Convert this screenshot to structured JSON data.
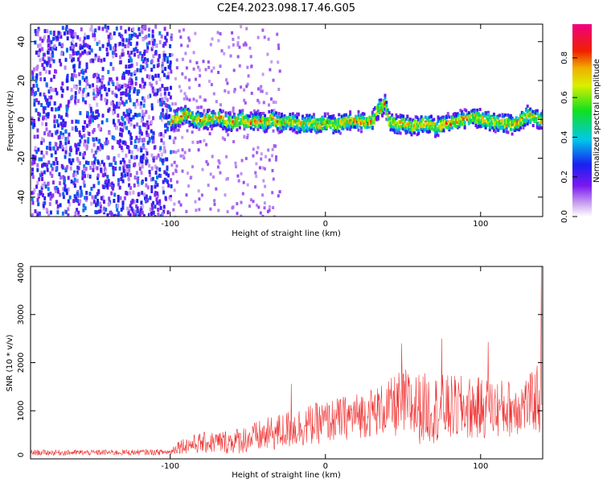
{
  "figure_title": "C2E4.2023.098.17.46.G05",
  "chart_data": [
    {
      "type": "heatmap",
      "title": "C2E4.2023.098.17.46.G05",
      "xlabel": "Height of straight line (km)",
      "ylabel": "Frequency (Hz)",
      "xlim": [
        -190,
        140
      ],
      "ylim": [
        -50,
        49
      ],
      "x_ticks": [
        -100,
        0,
        100
      ],
      "y_ticks": [
        -40,
        -20,
        0,
        20,
        40
      ],
      "colorbar": {
        "label": "Normalized spectral amplitude",
        "range": [
          0,
          0.97
        ],
        "ticks": [
          "0.0",
          "0.2",
          "0.4",
          "0.6",
          "0.8"
        ],
        "colormap": "rainbow (white → violet → blue → cyan → green → yellow → red → magenta)"
      },
      "noise_region": {
        "x_range": [
          -190,
          -100
        ],
        "y_range": [
          -50,
          49
        ],
        "amplitude": [
          0.05,
          0.35
        ]
      },
      "signal_ridge": {
        "x": [
          -100,
          -95,
          -90,
          -85,
          -80,
          -75,
          -70,
          -65,
          -60,
          -55,
          -50,
          -45,
          -40,
          -35,
          -30,
          -25,
          -20,
          -15,
          -10,
          -5,
          0,
          5,
          10,
          15,
          20,
          25,
          30,
          32,
          35,
          38,
          40,
          45,
          50,
          55,
          60,
          65,
          70,
          75,
          80,
          85,
          90,
          95,
          100,
          105,
          110,
          115,
          120,
          125,
          130,
          135,
          140
        ],
        "y": [
          0,
          2,
          3,
          1,
          0,
          1,
          2,
          0,
          -1,
          1,
          -1,
          0,
          -1,
          1,
          -1,
          0,
          -1,
          -2,
          -1,
          -2,
          -1,
          -2,
          -1,
          0,
          0,
          -1,
          0,
          5,
          7,
          9,
          0,
          -2,
          -1,
          -3,
          -2,
          -1,
          -3,
          -2,
          -1,
          0,
          1,
          2,
          1,
          0,
          -1,
          -1,
          -2,
          0,
          3,
          1,
          0
        ],
        "width_hz": 6,
        "peak_amplitude": 0.85
      }
    },
    {
      "type": "line",
      "xlabel": "Height of straight line (km)",
      "ylabel": "SNR (10 * v/v)",
      "xlim": [
        -190,
        140
      ],
      "ylim": [
        0,
        4000
      ],
      "x_ticks": [
        -100,
        0,
        100
      ],
      "y_ticks": [
        0,
        1000,
        2000,
        3000,
        4000
      ],
      "color": "#f03030",
      "envelope": {
        "x": [
          -190,
          -150,
          -100,
          -95,
          -80,
          -60,
          -40,
          -20,
          0,
          20,
          40,
          50,
          60,
          80,
          100,
          120,
          130,
          135,
          138,
          140
        ],
        "mean": [
          130,
          130,
          140,
          260,
          330,
          360,
          480,
          640,
          770,
          900,
          1050,
          1150,
          1050,
          1050,
          1050,
          1050,
          1150,
          1200,
          1350,
          1300
        ],
        "spread": [
          60,
          60,
          60,
          150,
          220,
          260,
          350,
          420,
          440,
          480,
          560,
          750,
          750,
          700,
          650,
          600,
          600,
          650,
          900,
          1000
        ]
      },
      "spikes": [
        {
          "x": -22,
          "y": 1560
        },
        {
          "x": 49,
          "y": 2400
        },
        {
          "x": 75,
          "y": 2500
        },
        {
          "x": 105,
          "y": 2430
        },
        {
          "x": 139,
          "y": 4000
        }
      ]
    }
  ]
}
